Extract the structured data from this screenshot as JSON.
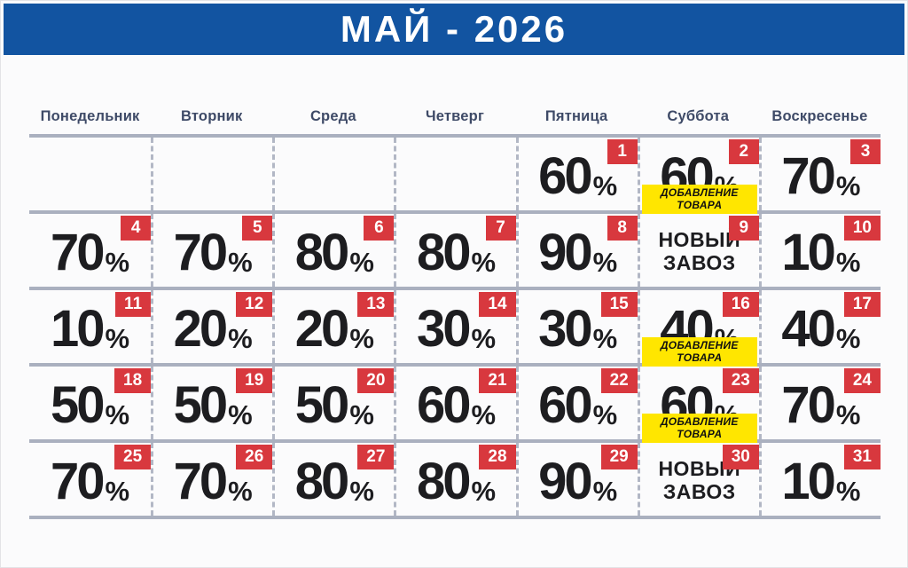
{
  "title": "МАЙ - 2026",
  "weekdays": [
    "Понедельник",
    "Вторник",
    "Среда",
    "Четверг",
    "Пятница",
    "Суббота",
    "Воскресенье"
  ],
  "labels": {
    "percent_sign": "%",
    "product_addition": "ДОБАВЛЕНИЕ ТОВАРА",
    "new_delivery_line1": "НОВЫЙ",
    "new_delivery_line2": "ЗАВОЗ"
  },
  "colors": {
    "header_bg": "#1254a1",
    "weekday_text": "#3e4a67",
    "grid_line": "#aab0bf",
    "badge_bg": "#d8383e",
    "badge_text": "#ffffff",
    "note_bg": "#ffe600",
    "value_text": "#1d1d20"
  },
  "weeks": [
    [
      null,
      null,
      null,
      null,
      {
        "day": 1,
        "type": "percent",
        "value": 60
      },
      {
        "day": 2,
        "type": "percent",
        "value": 60,
        "note": "product_addition"
      },
      {
        "day": 3,
        "type": "percent",
        "value": 70
      }
    ],
    [
      {
        "day": 4,
        "type": "percent",
        "value": 70
      },
      {
        "day": 5,
        "type": "percent",
        "value": 70
      },
      {
        "day": 6,
        "type": "percent",
        "value": 80
      },
      {
        "day": 7,
        "type": "percent",
        "value": 80
      },
      {
        "day": 8,
        "type": "percent",
        "value": 90
      },
      {
        "day": 9,
        "type": "delivery"
      },
      {
        "day": 10,
        "type": "percent",
        "value": 10
      }
    ],
    [
      {
        "day": 11,
        "type": "percent",
        "value": 10
      },
      {
        "day": 12,
        "type": "percent",
        "value": 20
      },
      {
        "day": 13,
        "type": "percent",
        "value": 20
      },
      {
        "day": 14,
        "type": "percent",
        "value": 30
      },
      {
        "day": 15,
        "type": "percent",
        "value": 30
      },
      {
        "day": 16,
        "type": "percent",
        "value": 40,
        "note": "product_addition"
      },
      {
        "day": 17,
        "type": "percent",
        "value": 40
      }
    ],
    [
      {
        "day": 18,
        "type": "percent",
        "value": 50
      },
      {
        "day": 19,
        "type": "percent",
        "value": 50
      },
      {
        "day": 20,
        "type": "percent",
        "value": 50
      },
      {
        "day": 21,
        "type": "percent",
        "value": 60
      },
      {
        "day": 22,
        "type": "percent",
        "value": 60
      },
      {
        "day": 23,
        "type": "percent",
        "value": 60,
        "note": "product_addition"
      },
      {
        "day": 24,
        "type": "percent",
        "value": 70
      }
    ],
    [
      {
        "day": 25,
        "type": "percent",
        "value": 70
      },
      {
        "day": 26,
        "type": "percent",
        "value": 70
      },
      {
        "day": 27,
        "type": "percent",
        "value": 80
      },
      {
        "day": 28,
        "type": "percent",
        "value": 80
      },
      {
        "day": 29,
        "type": "percent",
        "value": 90
      },
      {
        "day": 30,
        "type": "delivery"
      },
      {
        "day": 31,
        "type": "percent",
        "value": 10
      }
    ]
  ]
}
